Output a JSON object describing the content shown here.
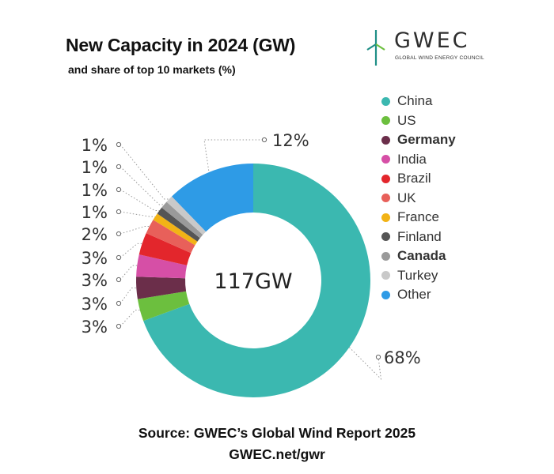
{
  "title": "New Capacity in 2024 (GW)",
  "subtitle": "and share of top 10 markets (%)",
  "logo": {
    "name": "GWEC",
    "tagline": "GLOBAL WIND ENERGY COUNCIL",
    "icon": "wind-turbine-icon"
  },
  "footer": {
    "source": "Source: GWEC’s Global Wind Report 2025",
    "url": "GWEC.net/gwr"
  },
  "chart_data": {
    "type": "pie",
    "variant": "donut",
    "title": "New Capacity in 2024 (GW)",
    "subtitle": "and share of top 10 markets (%)",
    "center_label": "117GW",
    "total_gw": 117,
    "legend_position": "right",
    "slices": [
      {
        "name": "China",
        "value": 68,
        "label": "68%",
        "color": "#3bb8b0",
        "bold": false
      },
      {
        "name": "US",
        "value": 3,
        "label": "3%",
        "color": "#6cbf3e",
        "bold": false
      },
      {
        "name": "Germany",
        "value": 3,
        "label": "3%",
        "color": "#6b2e4a",
        "bold": true
      },
      {
        "name": "India",
        "value": 3,
        "label": "3%",
        "color": "#d64fa6",
        "bold": false
      },
      {
        "name": "Brazil",
        "value": 3,
        "label": "3%",
        "color": "#e3262c",
        "bold": false
      },
      {
        "name": "UK",
        "value": 2,
        "label": "2%",
        "color": "#e8605a",
        "bold": false
      },
      {
        "name": "France",
        "value": 1,
        "label": "1%",
        "color": "#f2b316",
        "bold": false
      },
      {
        "name": "Finland",
        "value": 1,
        "label": "1%",
        "color": "#555555",
        "bold": false
      },
      {
        "name": "Canada",
        "value": 1,
        "label": "1%",
        "color": "#9a9a9a",
        "bold": true
      },
      {
        "name": "Turkey",
        "value": 1,
        "label": "1%",
        "color": "#c9c9c9",
        "bold": false
      },
      {
        "name": "Other",
        "value": 12,
        "label": "12%",
        "color": "#2e9be6",
        "bold": false
      }
    ]
  }
}
